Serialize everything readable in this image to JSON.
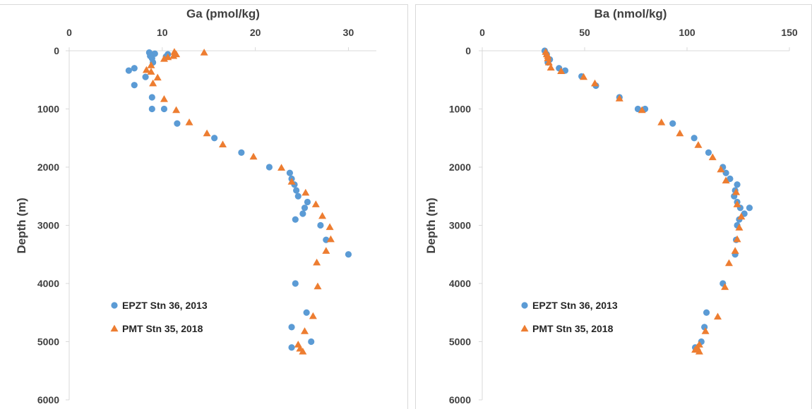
{
  "colors": {
    "series1": "#5B9BD5",
    "series2": "#ED7D31",
    "axis": "#d9d9d9",
    "text": "#404040"
  },
  "chart_data": [
    {
      "type": "scatter",
      "xlabel": "Ga (pmol/kg)",
      "ylabel": "Depth (m)",
      "xlim": [
        0,
        33
      ],
      "ylim": [
        6000,
        0
      ],
      "x_ticks": [
        "0",
        "10",
        "20",
        "30"
      ],
      "y_ticks": [
        "0",
        "1000",
        "2000",
        "3000",
        "4000",
        "5000",
        "6000"
      ],
      "x_axis_position": "top",
      "y_axis_reversed": true,
      "grid": false,
      "legend_position": "bottom-left",
      "series": [
        {
          "name": "EPZT Stn 36, 2013",
          "marker": "circle",
          "color": "#5B9BD5",
          "points": [
            [
              8.6,
              30
            ],
            [
              8.8,
              60
            ],
            [
              9.2,
              50
            ],
            [
              8.7,
              90
            ],
            [
              8.9,
              130
            ],
            [
              10.4,
              100
            ],
            [
              10.6,
              60
            ],
            [
              9,
              200
            ],
            [
              7,
              300
            ],
            [
              6.4,
              340
            ],
            [
              8.2,
              450
            ],
            [
              7.0,
              590
            ],
            [
              8.9,
              800
            ],
            [
              8.9,
              1000
            ],
            [
              10.2,
              1000
            ],
            [
              11.6,
              1250
            ],
            [
              15.6,
              1500
            ],
            [
              18.5,
              1750
            ],
            [
              21.5,
              2000
            ],
            [
              23.7,
              2100
            ],
            [
              23.9,
              2200
            ],
            [
              24.2,
              2300
            ],
            [
              24.4,
              2400
            ],
            [
              24.6,
              2500
            ],
            [
              25.6,
              2600
            ],
            [
              25.3,
              2700
            ],
            [
              25.1,
              2800
            ],
            [
              24.3,
              2900
            ],
            [
              27,
              3000
            ],
            [
              27.6,
              3250
            ],
            [
              30,
              3500
            ],
            [
              24.3,
              4000
            ],
            [
              25.5,
              4500
            ],
            [
              23.9,
              4750
            ],
            [
              26,
              5000
            ],
            [
              23.9,
              5100
            ]
          ]
        },
        {
          "name": "PMT Stn 35, 2018",
          "marker": "triangle",
          "color": "#ED7D31",
          "points": [
            [
              11.3,
              20
            ],
            [
              11.5,
              60
            ],
            [
              11.2,
              90
            ],
            [
              10.6,
              110
            ],
            [
              10.2,
              140
            ],
            [
              14.5,
              30
            ],
            [
              8.8,
              250
            ],
            [
              8.3,
              330
            ],
            [
              8.8,
              360
            ],
            [
              9.5,
              460
            ],
            [
              9.0,
              560
            ],
            [
              10.2,
              830
            ],
            [
              11.5,
              1020
            ],
            [
              12.9,
              1230
            ],
            [
              14.8,
              1420
            ],
            [
              16.5,
              1610
            ],
            [
              19.8,
              1820
            ],
            [
              22.8,
              2010
            ],
            [
              23.9,
              2250
            ],
            [
              25.4,
              2440
            ],
            [
              26.5,
              2640
            ],
            [
              27.2,
              2840
            ],
            [
              28,
              3030
            ],
            [
              28.1,
              3240
            ],
            [
              27.6,
              3440
            ],
            [
              26.6,
              3640
            ],
            [
              26.7,
              4050
            ],
            [
              26.2,
              4560
            ],
            [
              25.3,
              4820
            ],
            [
              24.6,
              5050
            ],
            [
              24.8,
              5120
            ],
            [
              25.1,
              5170
            ]
          ]
        }
      ]
    },
    {
      "type": "scatter",
      "xlabel": "Ba (nmol/kg)",
      "ylabel": "Depth (m)",
      "xlim": [
        0,
        150
      ],
      "ylim": [
        6000,
        0
      ],
      "x_ticks": [
        "0",
        "50",
        "100",
        "150"
      ],
      "y_ticks": [
        "0",
        "1000",
        "2000",
        "3000",
        "4000",
        "5000",
        "6000"
      ],
      "x_axis_position": "top",
      "y_axis_reversed": true,
      "grid": false,
      "legend_position": "bottom-left",
      "series": [
        {
          "name": "EPZT Stn 36, 2013",
          "marker": "circle",
          "color": "#5B9BD5",
          "points": [
            [
              30.5,
              0
            ],
            [
              31.5,
              60
            ],
            [
              33,
              150
            ],
            [
              32,
              200
            ],
            [
              37.5,
              300
            ],
            [
              40.5,
              340
            ],
            [
              48.5,
              440
            ],
            [
              55.5,
              600
            ],
            [
              67,
              800
            ],
            [
              76,
              1000
            ],
            [
              79.5,
              1000
            ],
            [
              93,
              1250
            ],
            [
              103.5,
              1500
            ],
            [
              110.5,
              1750
            ],
            [
              117.5,
              2000
            ],
            [
              119,
              2100
            ],
            [
              121,
              2200
            ],
            [
              124.5,
              2300
            ],
            [
              123.5,
              2400
            ],
            [
              123,
              2500
            ],
            [
              124.5,
              2600
            ],
            [
              126,
              2700
            ],
            [
              130.5,
              2700
            ],
            [
              128,
              2800
            ],
            [
              125.5,
              2900
            ],
            [
              124.5,
              3000
            ],
            [
              124,
              3250
            ],
            [
              123.5,
              3500
            ],
            [
              117.5,
              4000
            ],
            [
              109.5,
              4500
            ],
            [
              108.5,
              4750
            ],
            [
              107,
              5000
            ],
            [
              104,
              5100
            ]
          ]
        },
        {
          "name": "PMT Stn 35, 2018",
          "marker": "triangle",
          "color": "#ED7D31",
          "points": [
            [
              31,
              20
            ],
            [
              31.5,
              60
            ],
            [
              32,
              90
            ],
            [
              32,
              130
            ],
            [
              32.5,
              200
            ],
            [
              33.5,
              290
            ],
            [
              38.5,
              350
            ],
            [
              49.5,
              450
            ],
            [
              55,
              560
            ],
            [
              67,
              820
            ],
            [
              78,
              1020
            ],
            [
              87.5,
              1230
            ],
            [
              96.5,
              1420
            ],
            [
              105.5,
              1620
            ],
            [
              112.5,
              1830
            ],
            [
              116.5,
              2040
            ],
            [
              119,
              2230
            ],
            [
              124,
              2430
            ],
            [
              124.5,
              2640
            ],
            [
              126.5,
              2850
            ],
            [
              125.5,
              3040
            ],
            [
              124.5,
              3240
            ],
            [
              123.5,
              3440
            ],
            [
              120.5,
              3650
            ],
            [
              118.5,
              4060
            ],
            [
              115,
              4570
            ],
            [
              109,
              4820
            ],
            [
              106,
              5050
            ],
            [
              105,
              5100
            ],
            [
              106,
              5170
            ],
            [
              104,
              5140
            ]
          ]
        }
      ]
    }
  ]
}
